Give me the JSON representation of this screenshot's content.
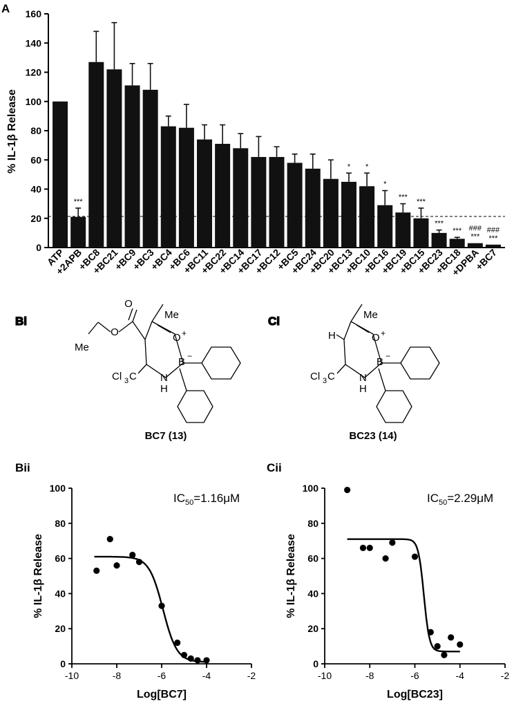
{
  "chart_data": [
    {
      "panel": "A",
      "type": "bar",
      "ylabel": "% IL-1β Release",
      "ylim": [
        0,
        160
      ],
      "yticks": [
        0,
        20,
        40,
        60,
        80,
        100,
        120,
        140,
        160
      ],
      "categories": [
        "ATP",
        "+2APB",
        "+BC8",
        "+BC21",
        "+BC9",
        "+BC3",
        "+BC4",
        "+BC6",
        "+BC11",
        "+BC22",
        "+BC14",
        "+BC17",
        "+BC12",
        "+BC5",
        "+BC24",
        "+BC20",
        "+BC13",
        "+BC10",
        "+BC16",
        "+BC19",
        "+BC15",
        "+BC23",
        "+BC18",
        "+DPBA",
        "+BC7"
      ],
      "values": [
        100,
        21,
        127,
        122,
        111,
        108,
        83,
        82,
        74,
        71,
        68,
        62,
        62,
        58,
        54,
        47,
        45,
        42,
        29,
        24,
        20,
        10,
        6,
        3,
        2
      ],
      "errors": [
        0,
        6,
        21,
        32,
        15,
        18,
        7,
        16,
        10,
        13,
        10,
        14,
        7,
        6,
        10,
        13,
        6,
        9,
        10,
        6,
        7,
        2,
        1,
        0,
        0
      ],
      "significance": [
        "",
        "***",
        "",
        "",
        "",
        "",
        "",
        "",
        "",
        "",
        "",
        "",
        "",
        "",
        "",
        "",
        "*",
        "*",
        "*",
        "***",
        "***",
        "***",
        "***",
        "***",
        "***"
      ],
      "significance2": [
        "",
        "",
        "",
        "",
        "",
        "",
        "",
        "",
        "",
        "",
        "",
        "",
        "",
        "",
        "",
        "",
        "",
        "",
        "",
        "",
        "",
        "",
        "",
        "###",
        "###"
      ],
      "reference_line": 21
    },
    {
      "panel": "Bii",
      "type": "scatter",
      "xlabel": "Log[BC7]",
      "ylabel": "% IL-1β Release",
      "xlim": [
        -10,
        -2
      ],
      "ylim": [
        0,
        100
      ],
      "xticks": [
        -10,
        -8,
        -6,
        -4,
        -2
      ],
      "yticks": [
        0,
        20,
        40,
        60,
        80,
        100
      ],
      "points": [
        [
          -8.9,
          53
        ],
        [
          -8.3,
          71
        ],
        [
          -8.0,
          56
        ],
        [
          -7.3,
          62
        ],
        [
          -7.0,
          58
        ],
        [
          -6.0,
          33
        ],
        [
          -5.3,
          12
        ],
        [
          -5.0,
          5
        ],
        [
          -4.7,
          3
        ],
        [
          -4.4,
          2
        ],
        [
          -4.0,
          2
        ]
      ],
      "fit": {
        "top": 61,
        "bottom": 1,
        "logIC50": -5.94,
        "hill": 1.4
      },
      "annotation_ic": "IC",
      "annotation_sub": "50",
      "annotation_val": "=1.16μM"
    },
    {
      "panel": "Cii",
      "type": "scatter",
      "xlabel": "Log[BC23]",
      "ylabel": "% IL-1β Release",
      "xlim": [
        -10,
        -2
      ],
      "ylim": [
        0,
        100
      ],
      "xticks": [
        -10,
        -8,
        -6,
        -4,
        -2
      ],
      "yticks": [
        0,
        20,
        40,
        60,
        80,
        100
      ],
      "points": [
        [
          -9.0,
          99
        ],
        [
          -8.3,
          66
        ],
        [
          -8.0,
          66
        ],
        [
          -7.3,
          60
        ],
        [
          -7.0,
          69
        ],
        [
          -6.0,
          61
        ],
        [
          -5.3,
          18
        ],
        [
          -5.0,
          10
        ],
        [
          -4.7,
          5
        ],
        [
          -4.4,
          15
        ],
        [
          -4.0,
          11
        ]
      ],
      "fit": {
        "top": 71,
        "bottom": 7,
        "logIC50": -5.6,
        "hill": 3.5
      },
      "annotation_ic": "IC",
      "annotation_sub": "50",
      "annotation_val": "=2.29μM"
    }
  ],
  "panels": {
    "A": "A",
    "Bi": "Bi",
    "Ci": "Ci",
    "Bii": "Bii",
    "Cii": "Cii"
  },
  "structures": {
    "bc7_label": "BC7 (13)",
    "bc23_label": "BC23 (14)",
    "me": "Me",
    "o": "O",
    "b": "B",
    "nh_n": "N",
    "nh_h": "H",
    "h": "H",
    "cl3c": "Cl",
    "cl3c_sub": "3",
    "cl3c_c": "C",
    "plus": "+",
    "minus": "−"
  }
}
